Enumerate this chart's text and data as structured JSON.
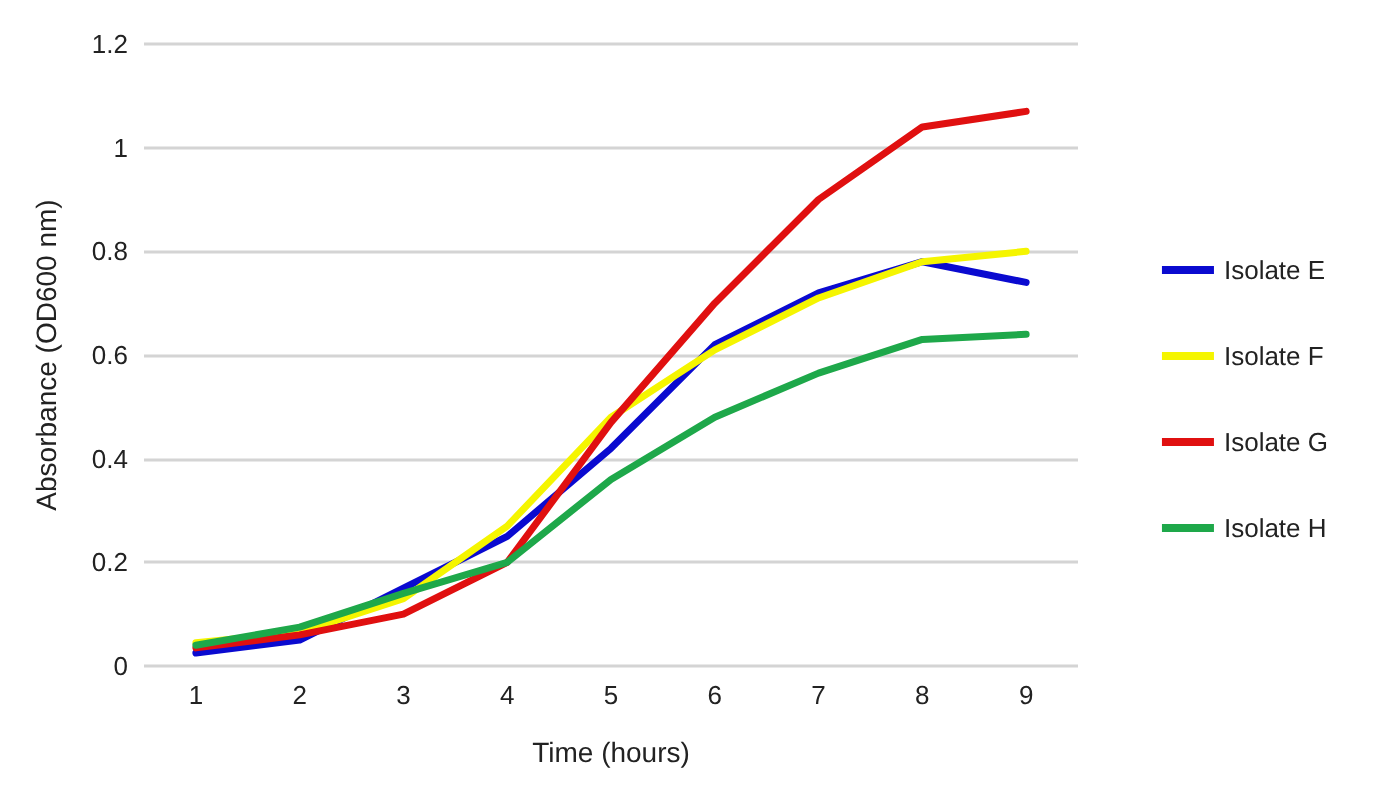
{
  "chart_data": {
    "type": "line",
    "xlabel": "Time (hours)",
    "ylabel": "Absorbance (OD600 nm)",
    "categories": [
      "1",
      "2",
      "3",
      "4",
      "5",
      "6",
      "7",
      "8",
      "9"
    ],
    "series": [
      {
        "name": "Isolate E",
        "color": "#0a0ad0",
        "values": [
          0.025,
          0.05,
          0.15,
          0.25,
          0.42,
          0.62,
          0.72,
          0.78,
          0.74
        ]
      },
      {
        "name": "Isolate F",
        "color": "#f5f500",
        "values": [
          0.045,
          0.065,
          0.13,
          0.27,
          0.48,
          0.61,
          0.71,
          0.78,
          0.8
        ]
      },
      {
        "name": "Isolate G",
        "color": "#e01010",
        "values": [
          0.035,
          0.06,
          0.1,
          0.2,
          0.47,
          0.7,
          0.9,
          1.04,
          1.07
        ]
      },
      {
        "name": "Isolate H",
        "color": "#1ea84a",
        "values": [
          0.04,
          0.075,
          0.14,
          0.2,
          0.36,
          0.48,
          0.565,
          0.63,
          0.64
        ]
      }
    ],
    "ylim": [
      0,
      1.2
    ],
    "yticks": [
      0,
      0.2,
      0.4,
      0.6,
      0.8,
      1,
      1.2
    ],
    "grid": "y",
    "legend": "right",
    "marker": "none",
    "line_style": "solid"
  }
}
